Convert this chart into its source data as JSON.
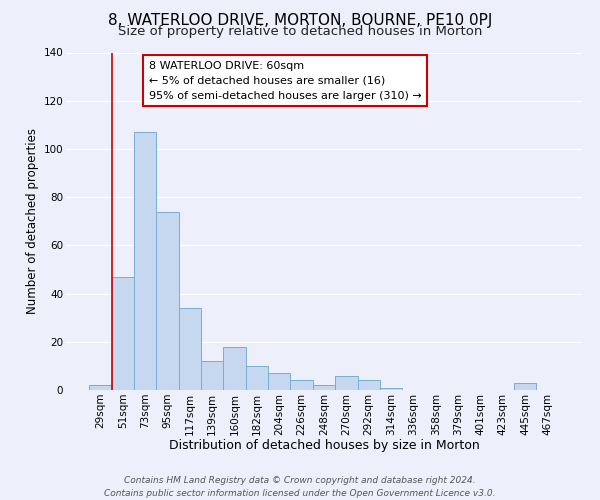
{
  "title": "8, WATERLOO DRIVE, MORTON, BOURNE, PE10 0PJ",
  "subtitle": "Size of property relative to detached houses in Morton",
  "xlabel": "Distribution of detached houses by size in Morton",
  "ylabel": "Number of detached properties",
  "footer_line1": "Contains HM Land Registry data © Crown copyright and database right 2024.",
  "footer_line2": "Contains public sector information licensed under the Open Government Licence v3.0.",
  "annotation_line1": "8 WATERLOO DRIVE: 60sqm",
  "annotation_line2": "← 5% of detached houses are smaller (16)",
  "annotation_line3": "95% of semi-detached houses are larger (310) →",
  "bar_labels": [
    "29sqm",
    "51sqm",
    "73sqm",
    "95sqm",
    "117sqm",
    "139sqm",
    "160sqm",
    "182sqm",
    "204sqm",
    "226sqm",
    "248sqm",
    "270sqm",
    "292sqm",
    "314sqm",
    "336sqm",
    "358sqm",
    "379sqm",
    "401sqm",
    "423sqm",
    "445sqm",
    "467sqm"
  ],
  "bar_heights": [
    2,
    47,
    107,
    74,
    34,
    12,
    18,
    10,
    7,
    4,
    2,
    6,
    4,
    1,
    0,
    0,
    0,
    0,
    0,
    3,
    0
  ],
  "bar_color": "#c5d8f0",
  "bar_edge_color": "#7aadd4",
  "ylim": [
    0,
    140
  ],
  "yticks": [
    0,
    20,
    40,
    60,
    80,
    100,
    120,
    140
  ],
  "bg_color": "#edf0fa",
  "annotation_box_color": "#ffffff",
  "annotation_box_edge": "#cc0000",
  "red_line_color": "#cc0000",
  "title_fontsize": 11,
  "subtitle_fontsize": 9.5,
  "xlabel_fontsize": 9,
  "ylabel_fontsize": 8.5,
  "tick_fontsize": 7.5,
  "annotation_fontsize": 8,
  "footer_fontsize": 6.5
}
